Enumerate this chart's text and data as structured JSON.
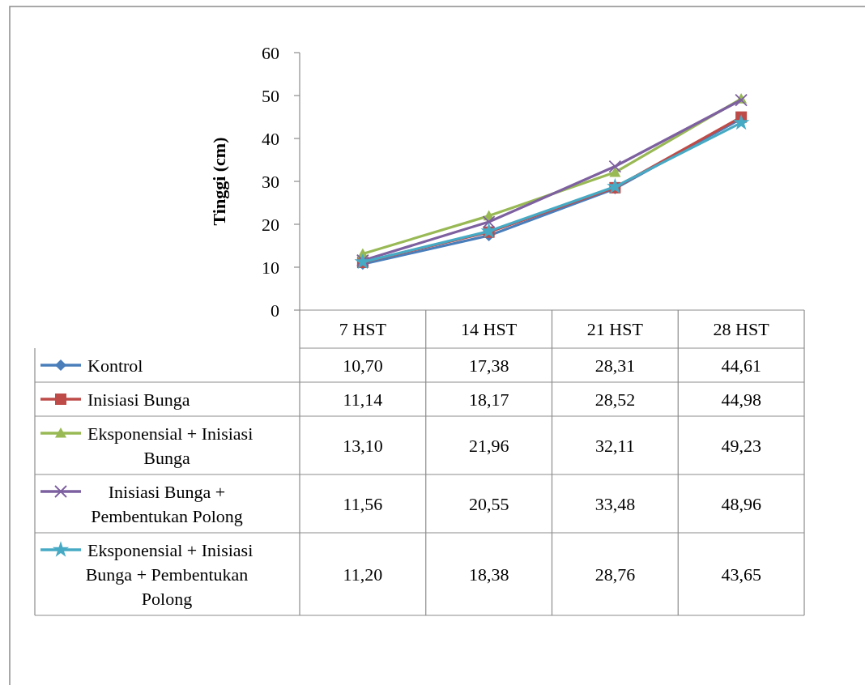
{
  "chart_data": {
    "type": "line",
    "ylabel": "Tinggi (cm)",
    "categories": [
      "7 HST",
      "14 HST",
      "21 HST",
      "28 HST"
    ],
    "ylim": [
      0,
      60
    ],
    "yticks": [
      0,
      10,
      20,
      30,
      40,
      50,
      60
    ],
    "grid": false,
    "legend": "bottom",
    "line_style": "solid",
    "series": [
      {
        "name": "Kontrol",
        "color": "#4a7ebb",
        "marker": "diamond",
        "values": [
          10.7,
          17.38,
          28.31,
          44.61
        ],
        "value_labels": [
          "10,70",
          "17,38",
          "28,31",
          "44,61"
        ]
      },
      {
        "name": "Inisiasi Bunga",
        "color": "#be4b48",
        "marker": "square",
        "values": [
          11.14,
          18.17,
          28.52,
          44.98
        ],
        "value_labels": [
          "11,14",
          "18,17",
          "28,52",
          "44,98"
        ]
      },
      {
        "name": "Eksponensial + Inisiasi Bunga",
        "color": "#98b954",
        "marker": "triangle",
        "values": [
          13.1,
          21.96,
          32.11,
          49.23
        ],
        "value_labels": [
          "13,10",
          "21,96",
          "32,11",
          "49,23"
        ]
      },
      {
        "name": "Inisiasi Bunga + Pembentukan Polong",
        "color": "#7d60a0",
        "marker": "cross",
        "values": [
          11.56,
          20.55,
          33.48,
          48.96
        ],
        "value_labels": [
          "11,56",
          "20,55",
          "33,48",
          "48,96"
        ]
      },
      {
        "name": "Eksponensial + Inisiasi Bunga + Pembentukan Polong",
        "color": "#46aac5",
        "marker": "star",
        "values": [
          11.2,
          18.38,
          28.76,
          43.65
        ],
        "value_labels": [
          "11,20",
          "18,38",
          "28,76",
          "43,65"
        ]
      }
    ]
  }
}
